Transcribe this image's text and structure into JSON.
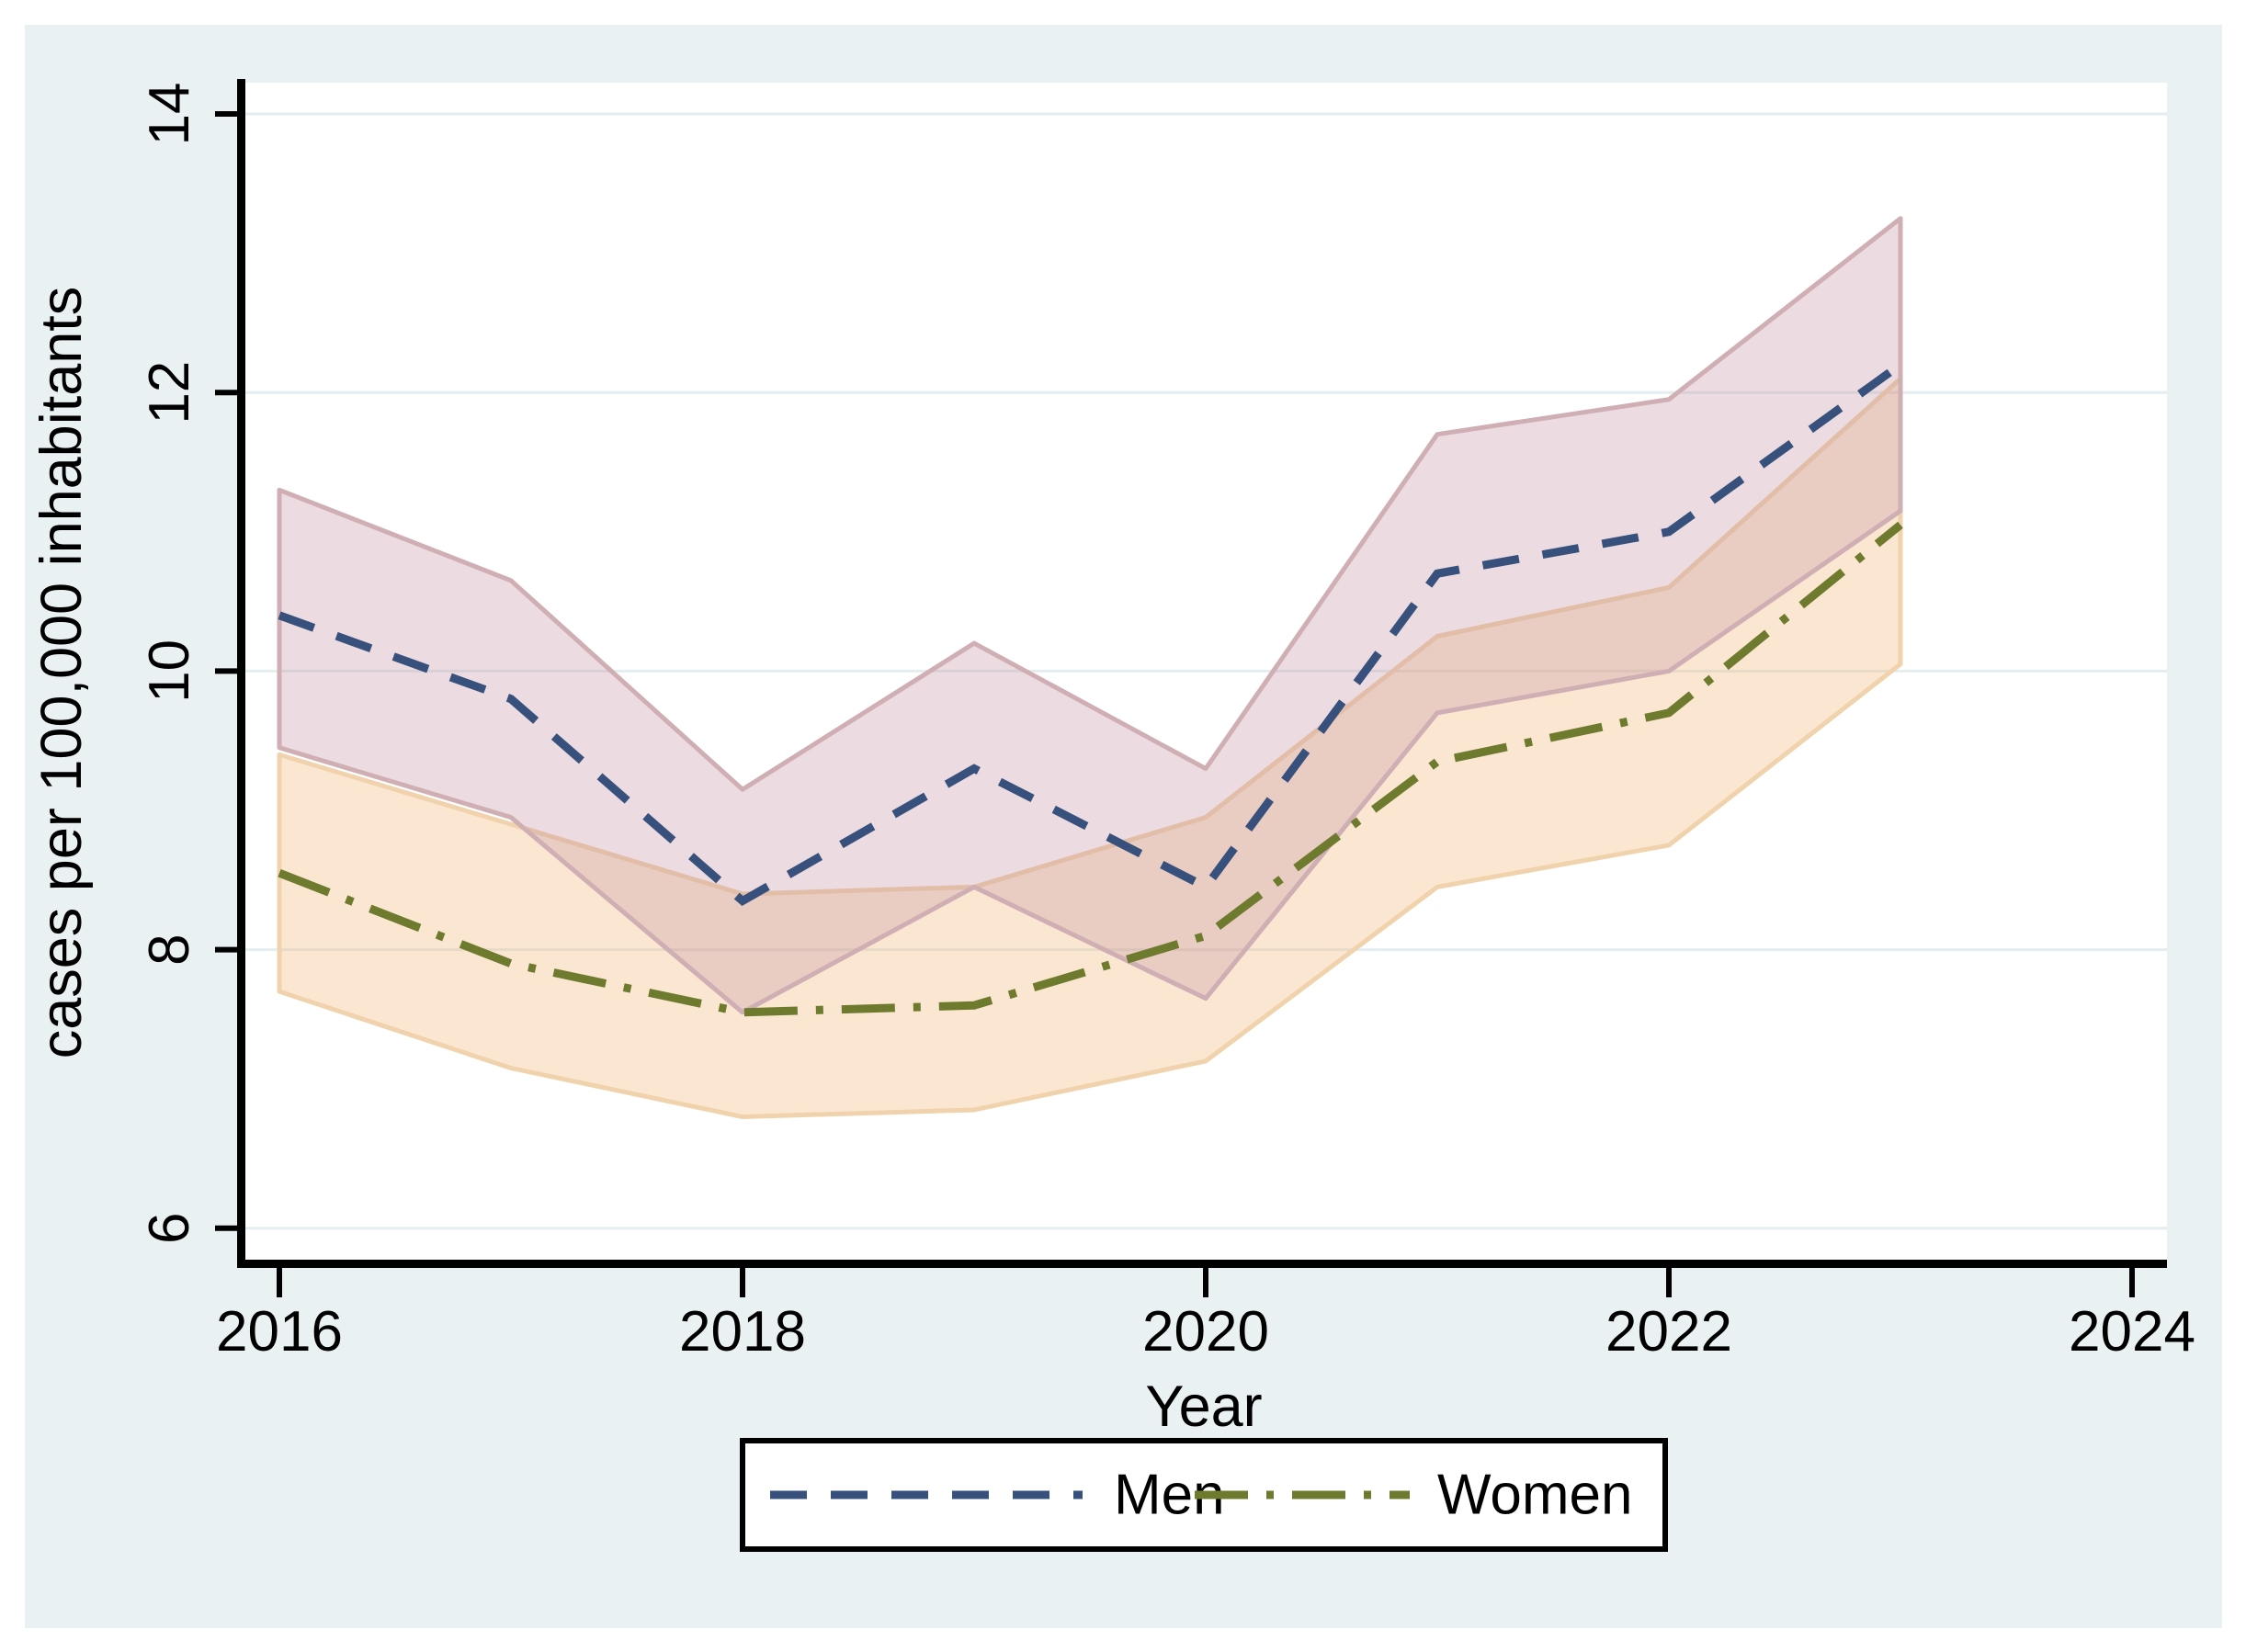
{
  "chart_data": {
    "type": "line",
    "title": "",
    "xlabel": "Year",
    "ylabel": "cases per 100,000 inhabitants",
    "x": [
      2016,
      2017,
      2018,
      2019,
      2020,
      2021,
      2022,
      2023
    ],
    "x_ticks": [
      2016,
      2018,
      2020,
      2022,
      2024
    ],
    "y_ticks": [
      6,
      8,
      10,
      12,
      14
    ],
    "xlim": [
      2015.8,
      2024.2
    ],
    "ylim": [
      5.75,
      14.25
    ],
    "grid": "horizontal-only",
    "legend_position": "bottom-center",
    "series": [
      {
        "name": "Men",
        "values": [
          10.4,
          9.8,
          8.35,
          9.3,
          8.45,
          10.7,
          11.0,
          12.2
        ],
        "ci_low": [
          9.45,
          8.95,
          7.55,
          8.45,
          7.65,
          9.7,
          10.0,
          11.15
        ],
        "ci_high": [
          11.3,
          10.65,
          9.15,
          10.2,
          9.3,
          11.7,
          11.95,
          13.25
        ],
        "line_color": "#38517C",
        "line_style": "dashed",
        "band_fill": "#C493A2",
        "band_fill_opacity": 0.32,
        "band_edge": "#CFAEB4"
      },
      {
        "name": "Women",
        "values": [
          8.55,
          7.9,
          7.55,
          7.6,
          8.1,
          9.35,
          9.7,
          11.05
        ],
        "ci_low": [
          7.7,
          7.15,
          6.8,
          6.85,
          7.2,
          8.45,
          8.75,
          10.05
        ],
        "ci_high": [
          9.4,
          8.9,
          8.4,
          8.45,
          8.95,
          10.25,
          10.6,
          12.1
        ],
        "line_color": "#6E7B2F",
        "line_style": "dash-dot",
        "band_fill": "#F0A95A",
        "band_fill_opacity": 0.28,
        "band_edge": "#F0D3AC"
      }
    ]
  },
  "legend": {
    "men": "Men",
    "women": "Women"
  },
  "colors": {
    "outer_background": "#FFFFFF",
    "panel_background": "#EAF1F3",
    "plot_background": "#FFFFFF",
    "gridline": "#E4EEF0",
    "axis": "#000000",
    "legend_border": "#000000",
    "legend_background": "#FFFFFF"
  }
}
